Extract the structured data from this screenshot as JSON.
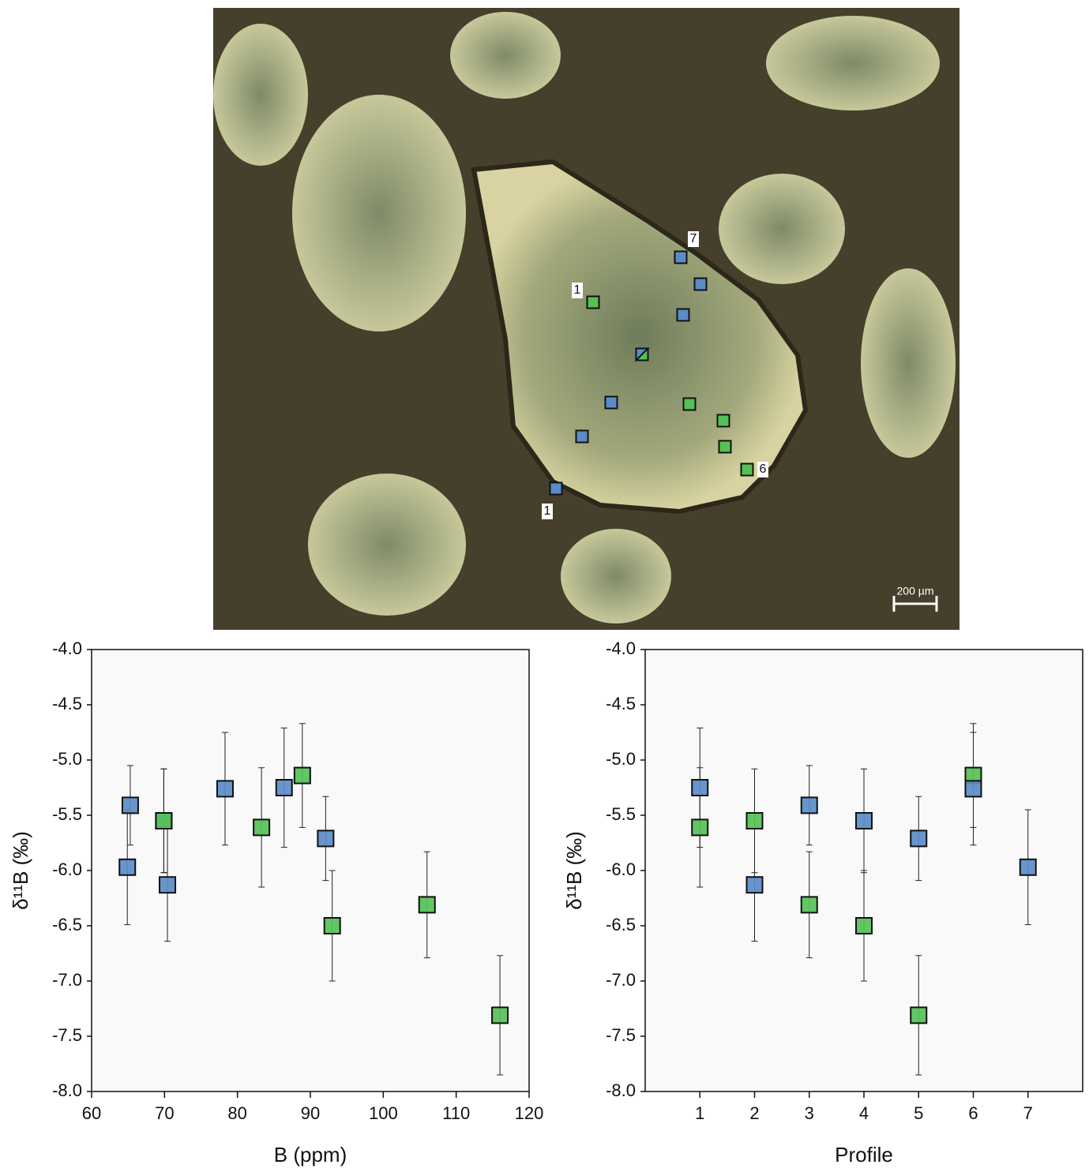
{
  "micrograph": {
    "labels": [
      "1",
      "7",
      "1",
      "6"
    ],
    "scale_bar": "200 µm"
  },
  "chart_data": [
    {
      "type": "scatter",
      "x_label": "B (ppm)",
      "y_label": "δ¹¹B (‰)",
      "xlim": [
        60,
        120
      ],
      "xticks": [
        60,
        70,
        80,
        90,
        100,
        110,
        120
      ],
      "ylim": [
        -8,
        -4
      ],
      "yticks": [
        {
          "value": -8,
          "label": "-8.0"
        },
        {
          "value": -7.5,
          "label": "-7.5"
        },
        {
          "value": -7,
          "label": "-7.0"
        },
        {
          "value": -6.5,
          "label": "-6.5"
        },
        {
          "value": -6,
          "label": "-6.0"
        },
        {
          "value": -5.5,
          "label": "-5.5"
        },
        {
          "value": -5,
          "label": "-5.0"
        },
        {
          "value": -4.5,
          "label": "-4.5"
        },
        {
          "value": -4,
          "label": "-4.0"
        }
      ],
      "series": [
        {
          "color": "#5b8cc8",
          "x": [
            64.9,
            65.3,
            70.4,
            78.3,
            86.4,
            92.1,
            69.9
          ],
          "values": [
            -5.97,
            -5.41,
            -6.13,
            -5.26,
            -5.25,
            -5.71,
            -5.55
          ],
          "errors": [
            0.52,
            0.36,
            0.51,
            0.51,
            0.54,
            0.38,
            0.47
          ]
        },
        {
          "color": "#55c155",
          "x": [
            83.3,
            88.9,
            93.0,
            106.0,
            116.0,
            69.9
          ],
          "values": [
            -5.61,
            -5.14,
            -6.5,
            -6.31,
            -7.31,
            -5.55
          ],
          "errors": [
            0.54,
            0.47,
            0.5,
            0.48,
            0.54,
            0.47
          ]
        }
      ]
    },
    {
      "type": "scatter",
      "x_label": "Profile",
      "y_label": "δ¹¹B (‰)",
      "xlim": [
        0,
        8
      ],
      "xticks": [
        1,
        2,
        3,
        4,
        5,
        6,
        7
      ],
      "ylim": [
        -8,
        -4
      ],
      "yticks": [
        {
          "value": -8,
          "label": "-8.0"
        },
        {
          "value": -7.5,
          "label": "-7.5"
        },
        {
          "value": -7,
          "label": "-7.0"
        },
        {
          "value": -6.5,
          "label": "-6.5"
        },
        {
          "value": -6,
          "label": "-6.0"
        },
        {
          "value": -5.5,
          "label": "-5.5"
        },
        {
          "value": -5,
          "label": "-5.0"
        },
        {
          "value": -4.5,
          "label": "-4.5"
        },
        {
          "value": -4,
          "label": "-4.0"
        }
      ],
      "series": [
        {
          "color": "#55c155",
          "x": [
            1,
            2,
            3,
            4,
            5,
            6
          ],
          "values": [
            -5.61,
            -5.55,
            -6.31,
            -6.5,
            -7.31,
            -5.14
          ],
          "errors": [
            0.54,
            0.47,
            0.48,
            0.5,
            0.54,
            0.47
          ]
        },
        {
          "color": "#5b8cc8",
          "x": [
            1,
            2,
            3,
            4,
            5,
            6,
            7
          ],
          "values": [
            -5.25,
            -6.13,
            -5.41,
            -5.55,
            -5.71,
            -5.26,
            -5.97
          ],
          "errors": [
            0.54,
            0.51,
            0.36,
            0.47,
            0.38,
            0.51,
            0.52
          ]
        }
      ]
    }
  ]
}
